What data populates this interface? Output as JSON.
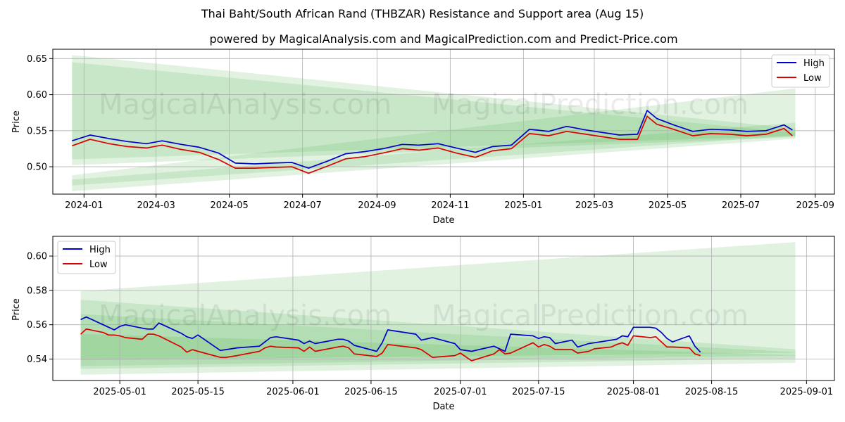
{
  "title": "Thai Baht/South African Rand (THBZAR) Resistance and Support area (Aug 15)",
  "subtitle": "powered by MagicalAnalysis.com and MagicalPrediction.com and Predict-Price.com",
  "watermark": [
    "MagicalAnalysis.com",
    "MagicalPrediction.com"
  ],
  "colors": {
    "high": "#0000cc",
    "low": "#dd0000",
    "band": "#4caf50"
  },
  "chart_data": [
    {
      "type": "line",
      "xlabel": "Date",
      "ylabel": "Price",
      "legend": "top-right",
      "grid": true,
      "x_ticks": [
        "2024-01",
        "2024-03",
        "2024-05",
        "2024-07",
        "2024-09",
        "2024-11",
        "2025-01",
        "2025-03",
        "2025-05",
        "2025-07",
        "2025-09"
      ],
      "y_ticks": [
        "0.50",
        "0.55",
        "0.60",
        "0.65"
      ],
      "xlim": [
        "2023-12-06",
        "2025-09-17"
      ],
      "ylim": [
        0.462,
        0.663
      ],
      "series": [
        {
          "name": "High",
          "x": [
            "2023-12-22",
            "2024-01-06",
            "2024-01-22",
            "2024-02-06",
            "2024-02-22",
            "2024-03-06",
            "2024-03-22",
            "2024-04-06",
            "2024-04-22",
            "2024-05-06",
            "2024-05-22",
            "2024-06-06",
            "2024-06-22",
            "2024-07-06",
            "2024-07-22",
            "2024-08-06",
            "2024-08-22",
            "2024-09-06",
            "2024-09-22",
            "2024-10-06",
            "2024-10-22",
            "2024-11-06",
            "2024-11-22",
            "2024-12-06",
            "2024-12-22",
            "2025-01-06",
            "2025-01-22",
            "2025-02-06",
            "2025-02-22",
            "2025-03-06",
            "2025-03-22",
            "2025-04-06",
            "2025-04-14",
            "2025-04-22",
            "2025-05-06",
            "2025-05-22",
            "2025-06-06",
            "2025-06-22",
            "2025-07-06",
            "2025-07-22",
            "2025-08-06",
            "2025-08-13"
          ],
          "values": [
            0.536,
            0.544,
            0.539,
            0.535,
            0.532,
            0.536,
            0.531,
            0.527,
            0.519,
            0.505,
            0.504,
            0.505,
            0.506,
            0.498,
            0.508,
            0.518,
            0.521,
            0.525,
            0.531,
            0.53,
            0.532,
            0.526,
            0.52,
            0.528,
            0.53,
            0.552,
            0.549,
            0.556,
            0.551,
            0.548,
            0.544,
            0.545,
            0.578,
            0.567,
            0.558,
            0.549,
            0.552,
            0.551,
            0.549,
            0.55,
            0.558,
            0.551
          ]
        },
        {
          "name": "Low",
          "x": [
            "2023-12-22",
            "2024-01-06",
            "2024-01-22",
            "2024-02-06",
            "2024-02-22",
            "2024-03-06",
            "2024-03-22",
            "2024-04-06",
            "2024-04-22",
            "2024-05-06",
            "2024-05-22",
            "2024-06-06",
            "2024-06-22",
            "2024-07-06",
            "2024-07-22",
            "2024-08-06",
            "2024-08-22",
            "2024-09-06",
            "2024-09-22",
            "2024-10-06",
            "2024-10-22",
            "2024-11-06",
            "2024-11-22",
            "2024-12-06",
            "2024-12-22",
            "2025-01-06",
            "2025-01-22",
            "2025-02-06",
            "2025-02-22",
            "2025-03-06",
            "2025-03-22",
            "2025-04-06",
            "2025-04-14",
            "2025-04-22",
            "2025-05-06",
            "2025-05-22",
            "2025-06-06",
            "2025-06-22",
            "2025-07-06",
            "2025-07-22",
            "2025-08-06",
            "2025-08-13"
          ],
          "values": [
            0.529,
            0.538,
            0.532,
            0.528,
            0.526,
            0.53,
            0.524,
            0.52,
            0.51,
            0.498,
            0.498,
            0.499,
            0.5,
            0.491,
            0.501,
            0.511,
            0.514,
            0.519,
            0.525,
            0.523,
            0.526,
            0.519,
            0.513,
            0.522,
            0.525,
            0.546,
            0.543,
            0.549,
            0.545,
            0.542,
            0.538,
            0.538,
            0.57,
            0.559,
            0.552,
            0.543,
            0.546,
            0.545,
            0.543,
            0.545,
            0.553,
            0.543
          ]
        }
      ]
    },
    {
      "type": "line",
      "xlabel": "Date",
      "ylabel": "Price",
      "legend": "top-left",
      "grid": true,
      "x_ticks": [
        "2025-05-01",
        "2025-05-15",
        "2025-06-01",
        "2025-06-15",
        "2025-07-01",
        "2025-07-15",
        "2025-08-01",
        "2025-08-15",
        "2025-09-01"
      ],
      "y_ticks": [
        "0.54",
        "0.56",
        "0.58",
        "0.60"
      ],
      "xlim": [
        "2025-04-19",
        "2025-09-06"
      ],
      "ylim": [
        0.5275,
        0.6115
      ],
      "series": [
        {
          "name": "High",
          "x": [
            "2025-04-24",
            "2025-04-25",
            "2025-04-28",
            "2025-04-29",
            "2025-04-30",
            "2025-05-01",
            "2025-05-02",
            "2025-05-05",
            "2025-05-06",
            "2025-05-07",
            "2025-05-08",
            "2025-05-12",
            "2025-05-13",
            "2025-05-14",
            "2025-05-15",
            "2025-05-19",
            "2025-05-20",
            "2025-05-22",
            "2025-05-26",
            "2025-05-27",
            "2025-05-28",
            "2025-05-29",
            "2025-06-02",
            "2025-06-03",
            "2025-06-04",
            "2025-06-05",
            "2025-06-09",
            "2025-06-10",
            "2025-06-11",
            "2025-06-12",
            "2025-06-16",
            "2025-06-17",
            "2025-06-18",
            "2025-06-23",
            "2025-06-24",
            "2025-06-26",
            "2025-06-30",
            "2025-07-01",
            "2025-07-03",
            "2025-07-07",
            "2025-07-08",
            "2025-07-09",
            "2025-07-10",
            "2025-07-14",
            "2025-07-15",
            "2025-07-16",
            "2025-07-17",
            "2025-07-18",
            "2025-07-21",
            "2025-07-22",
            "2025-07-24",
            "2025-07-25",
            "2025-07-28",
            "2025-07-29",
            "2025-07-30",
            "2025-07-31",
            "2025-08-01",
            "2025-08-04",
            "2025-08-05",
            "2025-08-06",
            "2025-08-07",
            "2025-08-08",
            "2025-08-11",
            "2025-08-12",
            "2025-08-13"
          ],
          "values": [
            0.563,
            0.5645,
            0.56,
            0.5585,
            0.557,
            0.559,
            0.56,
            0.558,
            0.5575,
            0.5575,
            0.561,
            0.555,
            0.553,
            0.552,
            0.554,
            0.545,
            0.5455,
            0.5465,
            0.5475,
            0.55,
            0.5525,
            0.553,
            0.551,
            0.549,
            0.5505,
            0.549,
            0.5515,
            0.5515,
            0.5505,
            0.548,
            0.5445,
            0.5495,
            0.557,
            0.5545,
            0.551,
            0.5525,
            0.549,
            0.5455,
            0.5445,
            0.5475,
            0.546,
            0.5445,
            0.5545,
            0.5535,
            0.552,
            0.553,
            0.5525,
            0.549,
            0.551,
            0.547,
            0.549,
            0.5495,
            0.551,
            0.5515,
            0.5535,
            0.553,
            0.5585,
            0.5585,
            0.558,
            0.5555,
            0.552,
            0.55,
            0.5535,
            0.5475,
            0.544
          ]
        },
        {
          "name": "Low",
          "x": [
            "2025-04-24",
            "2025-04-25",
            "2025-04-28",
            "2025-04-29",
            "2025-04-30",
            "2025-05-01",
            "2025-05-02",
            "2025-05-05",
            "2025-05-06",
            "2025-05-07",
            "2025-05-08",
            "2025-05-12",
            "2025-05-13",
            "2025-05-14",
            "2025-05-15",
            "2025-05-19",
            "2025-05-20",
            "2025-05-22",
            "2025-05-26",
            "2025-05-27",
            "2025-05-28",
            "2025-05-29",
            "2025-06-02",
            "2025-06-03",
            "2025-06-04",
            "2025-06-05",
            "2025-06-09",
            "2025-06-10",
            "2025-06-11",
            "2025-06-12",
            "2025-06-16",
            "2025-06-17",
            "2025-06-18",
            "2025-06-23",
            "2025-06-24",
            "2025-06-26",
            "2025-06-30",
            "2025-07-01",
            "2025-07-03",
            "2025-07-07",
            "2025-07-08",
            "2025-07-09",
            "2025-07-10",
            "2025-07-14",
            "2025-07-15",
            "2025-07-16",
            "2025-07-17",
            "2025-07-18",
            "2025-07-21",
            "2025-07-22",
            "2025-07-24",
            "2025-07-25",
            "2025-07-28",
            "2025-07-29",
            "2025-07-30",
            "2025-07-31",
            "2025-08-01",
            "2025-08-04",
            "2025-08-05",
            "2025-08-06",
            "2025-08-07",
            "2025-08-08",
            "2025-08-11",
            "2025-08-12",
            "2025-08-13"
          ],
          "values": [
            0.5545,
            0.5575,
            0.5555,
            0.554,
            0.554,
            0.5535,
            0.5525,
            0.5515,
            0.5545,
            0.5545,
            0.5535,
            0.547,
            0.544,
            0.5455,
            0.5445,
            0.541,
            0.541,
            0.542,
            0.5445,
            0.5465,
            0.5475,
            0.547,
            0.5465,
            0.5445,
            0.547,
            0.5445,
            0.547,
            0.5475,
            0.5465,
            0.543,
            0.5415,
            0.5435,
            0.5485,
            0.5465,
            0.5455,
            0.541,
            0.542,
            0.5435,
            0.539,
            0.543,
            0.5455,
            0.543,
            0.5435,
            0.5495,
            0.547,
            0.5485,
            0.5475,
            0.5455,
            0.5455,
            0.5435,
            0.5445,
            0.546,
            0.547,
            0.5485,
            0.5495,
            0.548,
            0.5535,
            0.5525,
            0.553,
            0.55,
            0.547,
            0.547,
            0.5465,
            0.543,
            0.542
          ]
        }
      ]
    }
  ]
}
